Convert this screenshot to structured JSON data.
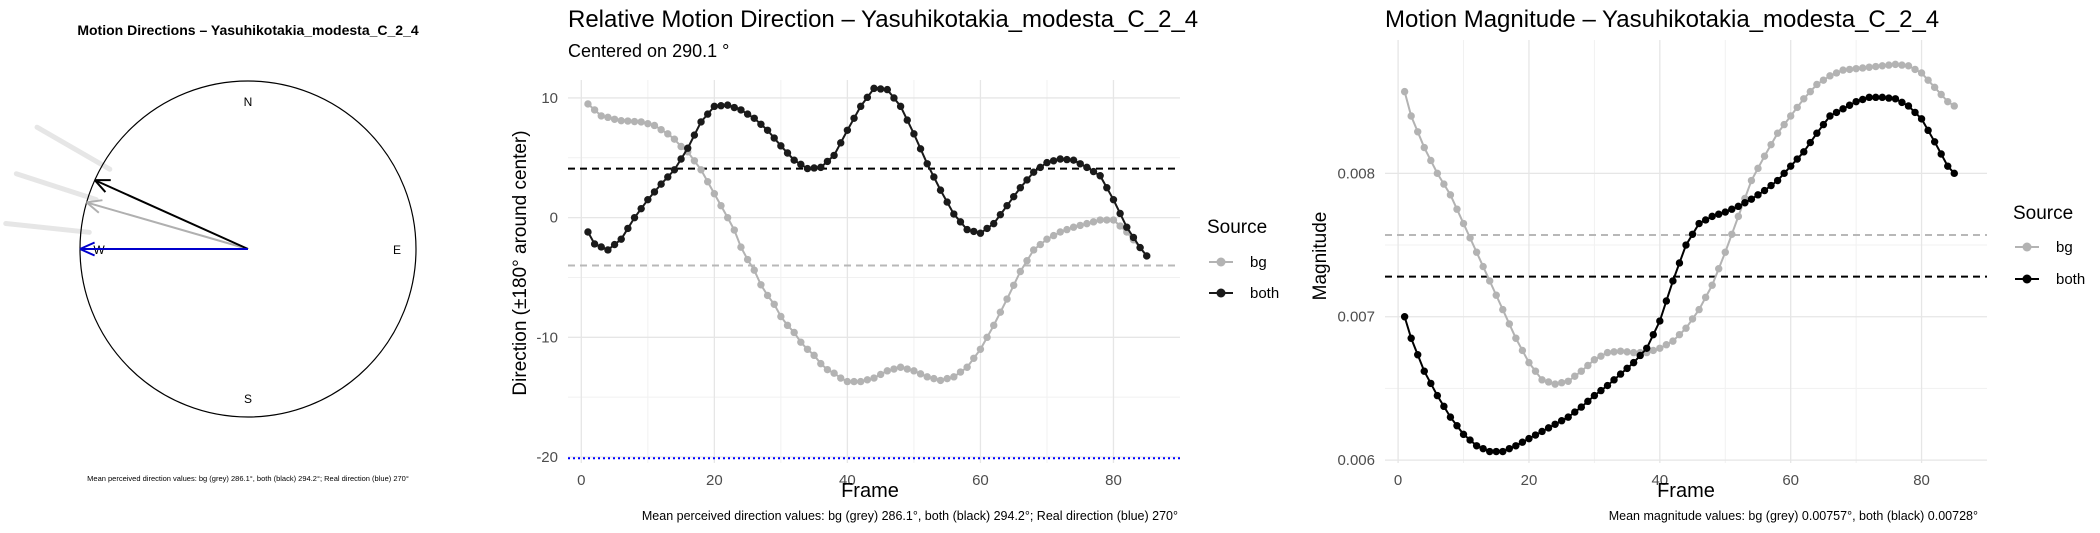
{
  "chart_data": [
    {
      "type": "compass",
      "title": "Motion Directions – Yasuhikotakia_modesta_C_2_4",
      "cardinals": [
        "N",
        "E",
        "S",
        "W"
      ],
      "caption": "Mean perceived direction values: bg (grey) 286.1°, both (black) 294.2°; Real direction (blue) 270°",
      "arrows": [
        {
          "name": "bg",
          "direction_deg": 286.1,
          "color": "#b0b0b0"
        },
        {
          "name": "both",
          "direction_deg": 294.2,
          "color": "#000000"
        },
        {
          "name": "Real direction",
          "direction_deg": 270,
          "color": "#0000cc"
        }
      ],
      "trail_directions_deg": [
        300,
        288,
        276
      ],
      "trail_color": "#e6e6e6"
    },
    {
      "type": "line",
      "title": "Relative Motion Direction – Yasuhikotakia_modesta_C_2_4",
      "subtitle": "Centered on  290.1 °",
      "xlabel": "Frame",
      "ylabel": "Direction (±180° around center)",
      "xlim": [
        -2,
        90
      ],
      "ylim": [
        -20.5,
        11.5
      ],
      "xticks": [
        0,
        20,
        40,
        60,
        80
      ],
      "yticks": [
        -20,
        -10,
        0,
        10
      ],
      "grid": true,
      "legend": {
        "title": "Source",
        "position": "right"
      },
      "caption": "Mean perceived direction values: bg (grey) 286.1°, both (black) 294.2°; Real direction (blue) 270°",
      "hlines": [
        {
          "y": 4.1,
          "color": "#000000",
          "style": "dashed"
        },
        {
          "y": -4.0,
          "color": "#b8b8b8",
          "style": "dashed"
        },
        {
          "y": -20.1,
          "color": "#0000ff",
          "style": "dotted"
        }
      ],
      "series": [
        {
          "name": "bg",
          "color": "#b3b3b3",
          "knots": [
            [
              1,
              9.5
            ],
            [
              3,
              8.5
            ],
            [
              6,
              8.1
            ],
            [
              9,
              8.0
            ],
            [
              11,
              7.7
            ],
            [
              13,
              7.0
            ],
            [
              16,
              5.5
            ],
            [
              18,
              4.0
            ],
            [
              20,
              2.0
            ],
            [
              22,
              0.0
            ],
            [
              25,
              -3.5
            ],
            [
              28,
              -6.5
            ],
            [
              31,
              -9.0
            ],
            [
              34,
              -11.0
            ],
            [
              37,
              -12.7
            ],
            [
              40,
              -13.7
            ],
            [
              42,
              -13.7
            ],
            [
              44,
              -13.4
            ],
            [
              46,
              -12.8
            ],
            [
              48,
              -12.5
            ],
            [
              50,
              -12.8
            ],
            [
              52,
              -13.3
            ],
            [
              54,
              -13.6
            ],
            [
              56,
              -13.3
            ],
            [
              58,
              -12.5
            ],
            [
              60,
              -11.0
            ],
            [
              62,
              -9.0
            ],
            [
              64,
              -6.8
            ],
            [
              66,
              -4.5
            ],
            [
              68,
              -2.7
            ],
            [
              70,
              -1.8
            ],
            [
              72,
              -1.2
            ],
            [
              74,
              -0.8
            ],
            [
              76,
              -0.5
            ],
            [
              78,
              -0.2
            ],
            [
              80,
              -0.2
            ],
            [
              82,
              -1.2
            ],
            [
              84,
              -2.5
            ],
            [
              85,
              -3.2
            ]
          ]
        },
        {
          "name": "both",
          "color": "#1a1a1a",
          "knots": [
            [
              1,
              -1.2
            ],
            [
              2,
              -2.2
            ],
            [
              4,
              -2.7
            ],
            [
              6,
              -1.8
            ],
            [
              8,
              0.0
            ],
            [
              10,
              1.5
            ],
            [
              12,
              2.8
            ],
            [
              14,
              4.0
            ],
            [
              16,
              5.8
            ],
            [
              18,
              8.0
            ],
            [
              20,
              9.3
            ],
            [
              22,
              9.4
            ],
            [
              24,
              9.0
            ],
            [
              26,
              8.3
            ],
            [
              28,
              7.3
            ],
            [
              30,
              6.0
            ],
            [
              32,
              4.8
            ],
            [
              34,
              4.1
            ],
            [
              36,
              4.2
            ],
            [
              38,
              5.2
            ],
            [
              40,
              7.3
            ],
            [
              42,
              9.3
            ],
            [
              44,
              10.8
            ],
            [
              46,
              10.7
            ],
            [
              48,
              9.3
            ],
            [
              50,
              7.0
            ],
            [
              52,
              4.5
            ],
            [
              54,
              2.3
            ],
            [
              56,
              0.3
            ],
            [
              58,
              -1.0
            ],
            [
              60,
              -1.3
            ],
            [
              62,
              -0.5
            ],
            [
              64,
              1.0
            ],
            [
              66,
              2.5
            ],
            [
              68,
              3.8
            ],
            [
              70,
              4.6
            ],
            [
              72,
              4.9
            ],
            [
              74,
              4.8
            ],
            [
              76,
              4.2
            ],
            [
              78,
              3.5
            ],
            [
              80,
              1.5
            ],
            [
              82,
              -0.8
            ],
            [
              84,
              -2.5
            ],
            [
              85,
              -3.2
            ]
          ]
        }
      ]
    },
    {
      "type": "line",
      "title": "Motion Magnitude – Yasuhikotakia_modesta_C_2_4",
      "xlabel": "Frame",
      "ylabel": "Magnitude",
      "xlim": [
        -2,
        90
      ],
      "ylim": [
        0.00598,
        0.00893
      ],
      "xticks": [
        0,
        20,
        40,
        60,
        80
      ],
      "yticks": [
        0.006,
        0.007,
        0.008
      ],
      "ytick_labels": [
        "0.006",
        "0.007",
        "0.008"
      ],
      "grid": true,
      "legend": {
        "title": "Source",
        "position": "right"
      },
      "caption": "Mean magnitude values: bg (grey) 0.00757°, both (black) 0.00728°",
      "hlines": [
        {
          "y": 0.00757,
          "color": "#b8b8b8",
          "style": "dashed"
        },
        {
          "y": 0.00728,
          "color": "#000000",
          "style": "dashed"
        }
      ],
      "series": [
        {
          "name": "bg",
          "color": "#b3b3b3",
          "knots": [
            [
              1,
              0.00857
            ],
            [
              2,
              0.0084
            ],
            [
              4,
              0.00818
            ],
            [
              6,
              0.008
            ],
            [
              8,
              0.00785
            ],
            [
              10,
              0.00765
            ],
            [
              12,
              0.00745
            ],
            [
              14,
              0.00725
            ],
            [
              16,
              0.00705
            ],
            [
              18,
              0.00685
            ],
            [
              20,
              0.00668
            ],
            [
              22,
              0.00656
            ],
            [
              24,
              0.00653
            ],
            [
              26,
              0.00655
            ],
            [
              28,
              0.00662
            ],
            [
              30,
              0.0067
            ],
            [
              32,
              0.00675
            ],
            [
              34,
              0.00676
            ],
            [
              36,
              0.00675
            ],
            [
              38,
              0.00675
            ],
            [
              40,
              0.00678
            ],
            [
              42,
              0.00683
            ],
            [
              44,
              0.00692
            ],
            [
              46,
              0.00705
            ],
            [
              48,
              0.00722
            ],
            [
              50,
              0.00745
            ],
            [
              52,
              0.0077
            ],
            [
              54,
              0.00795
            ],
            [
              56,
              0.00812
            ],
            [
              58,
              0.00828
            ],
            [
              60,
              0.0084
            ],
            [
              62,
              0.00852
            ],
            [
              64,
              0.00862
            ],
            [
              66,
              0.00868
            ],
            [
              68,
              0.00872
            ],
            [
              70,
              0.00873
            ],
            [
              72,
              0.00874
            ],
            [
              74,
              0.00875
            ],
            [
              76,
              0.00876
            ],
            [
              78,
              0.00875
            ],
            [
              80,
              0.0087
            ],
            [
              82,
              0.0086
            ],
            [
              84,
              0.0085
            ],
            [
              85,
              0.00847
            ]
          ]
        },
        {
          "name": "both",
          "color": "#000000",
          "knots": [
            [
              1,
              0.007
            ],
            [
              2,
              0.00685
            ],
            [
              4,
              0.00662
            ],
            [
              6,
              0.00645
            ],
            [
              8,
              0.0063
            ],
            [
              10,
              0.00618
            ],
            [
              12,
              0.0061
            ],
            [
              14,
              0.00606
            ],
            [
              16,
              0.00606
            ],
            [
              18,
              0.0061
            ],
            [
              20,
              0.00615
            ],
            [
              22,
              0.0062
            ],
            [
              24,
              0.00625
            ],
            [
              26,
              0.0063
            ],
            [
              28,
              0.00637
            ],
            [
              30,
              0.00645
            ],
            [
              32,
              0.00652
            ],
            [
              34,
              0.0066
            ],
            [
              36,
              0.00668
            ],
            [
              38,
              0.00678
            ],
            [
              40,
              0.00697
            ],
            [
              42,
              0.00725
            ],
            [
              44,
              0.0075
            ],
            [
              46,
              0.00765
            ],
            [
              48,
              0.0077
            ],
            [
              50,
              0.00773
            ],
            [
              52,
              0.00777
            ],
            [
              54,
              0.00782
            ],
            [
              56,
              0.00788
            ],
            [
              58,
              0.00795
            ],
            [
              60,
              0.00805
            ],
            [
              62,
              0.00815
            ],
            [
              64,
              0.00828
            ],
            [
              66,
              0.0084
            ],
            [
              68,
              0.00845
            ],
            [
              70,
              0.0085
            ],
            [
              72,
              0.00853
            ],
            [
              74,
              0.00853
            ],
            [
              76,
              0.00852
            ],
            [
              78,
              0.00847
            ],
            [
              80,
              0.00838
            ],
            [
              82,
              0.00822
            ],
            [
              84,
              0.00805
            ],
            [
              85,
              0.008
            ]
          ]
        }
      ]
    }
  ]
}
